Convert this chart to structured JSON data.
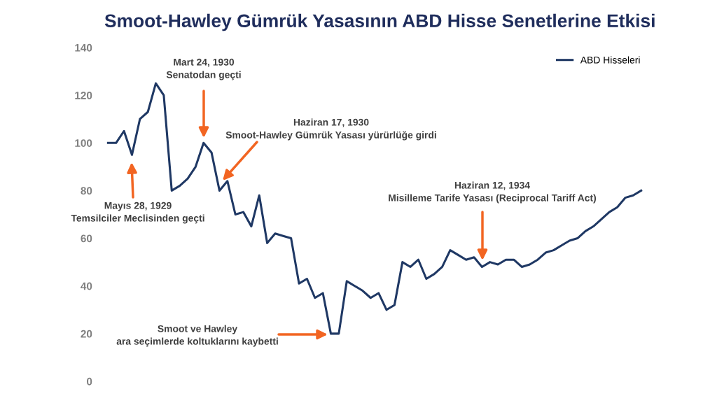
{
  "chart_data": {
    "type": "line",
    "title": "Smoot-Hawley Gümrük Yasasının ABD Hisse Senetlerine Etkisi",
    "categories": [
      null,
      null,
      null,
      null,
      null,
      null,
      null,
      null,
      null,
      null,
      null,
      null,
      null,
      null,
      null,
      null,
      null,
      null,
      null,
      null,
      null,
      null,
      null,
      null,
      null,
      null,
      null,
      null,
      null,
      null,
      null,
      null,
      null,
      null,
      null,
      null,
      null,
      null,
      null,
      null,
      null,
      null,
      null,
      null,
      null,
      null,
      null,
      null,
      null,
      null,
      null,
      null,
      null,
      null,
      null,
      null,
      null,
      null,
      null,
      null,
      null,
      null,
      null,
      null,
      null,
      null,
      null,
      null
    ],
    "series": [
      {
        "name": "ABD Hisseleri",
        "color": "#1f3864",
        "values": [
          100,
          100,
          105,
          95,
          110,
          113,
          125,
          120,
          80,
          82,
          85,
          90,
          100,
          96,
          80,
          84,
          70,
          71,
          65,
          78,
          58,
          62,
          61,
          60,
          41,
          43,
          35,
          37,
          20,
          20,
          42,
          40,
          38,
          35,
          37,
          30,
          32,
          50,
          48,
          51,
          43,
          45,
          48,
          55,
          53,
          51,
          52,
          48,
          50,
          49,
          51,
          51,
          48,
          49,
          51,
          54,
          55,
          57,
          59,
          60,
          63,
          65,
          68,
          71,
          73,
          77,
          78,
          80
        ]
      }
    ],
    "ylim": [
      0,
      140
    ],
    "yticks": [
      0,
      20,
      40,
      60,
      80,
      100,
      120,
      140
    ],
    "tick_labels": "y",
    "grid": false,
    "legend": "top right",
    "marker": "none",
    "line_style": "solid",
    "annotations": [
      "Mart 24, 1930\nSenatodan geçti",
      "Haziran 17, 1930\nSmoot-Hawley Gümrük Yasası yürürlüğe girdi",
      "Mayıs 28, 1929\nTemsilciler Meclisinden geçti",
      "Smoot ve Hawley\nara seçimlerde koltuklarını kaybetti",
      "Haziran 12, 1934\nMisilleme Tarife Yasası (Reciprocal Tariff Act)"
    ]
  }
}
